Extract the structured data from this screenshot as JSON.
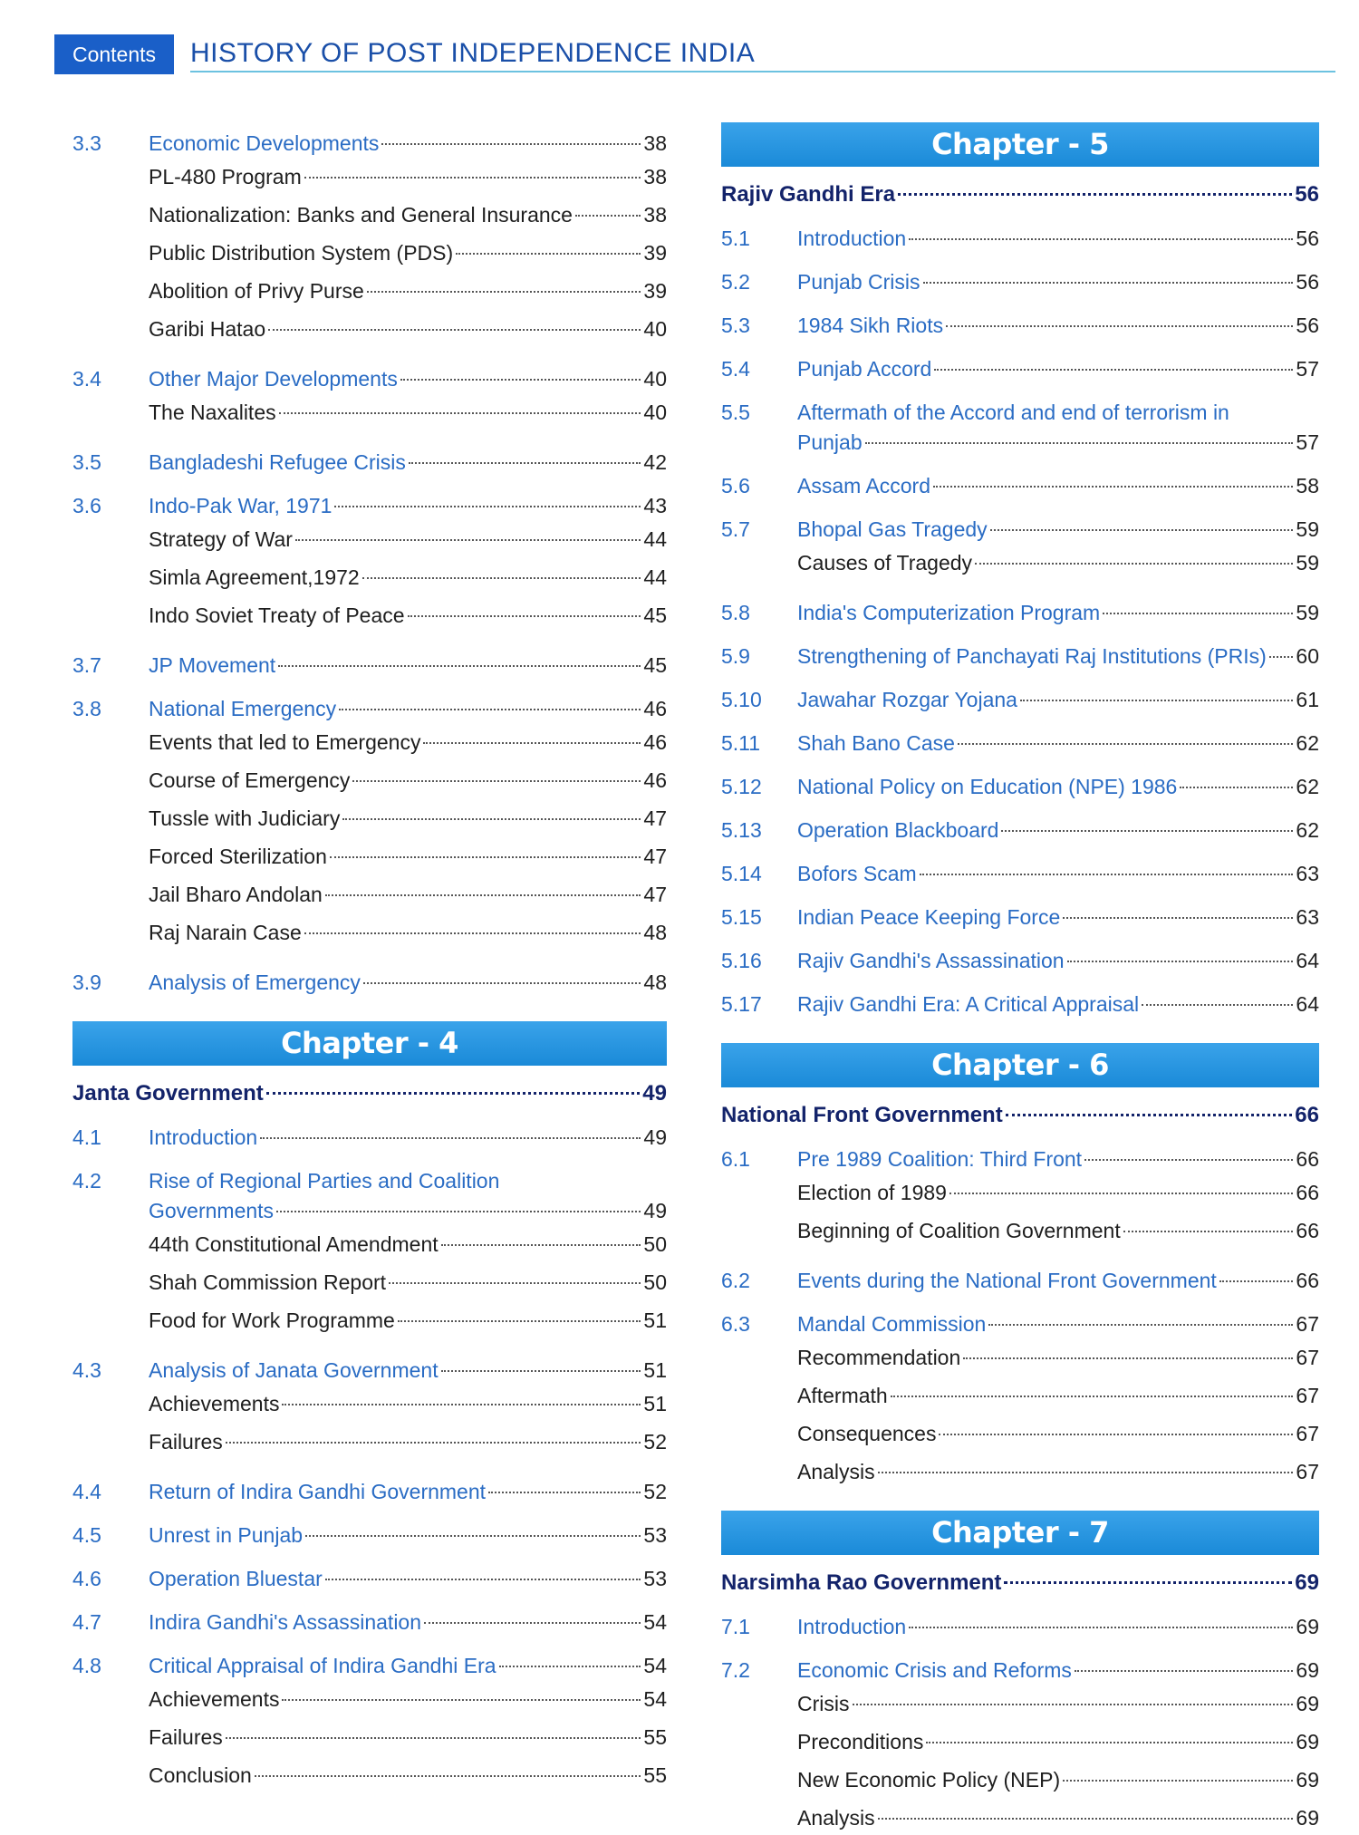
{
  "header": {
    "tag": "Contents",
    "title": "HISTORY OF POST INDEPENDENCE INDIA"
  },
  "colors": {
    "accent": "#1a5fc8",
    "band": "#1f93e0",
    "section_text": "#2a6cc4",
    "chapter_title": "#13236a"
  },
  "left": [
    {
      "type": "section",
      "num": "3.3",
      "title": "Economic Developments",
      "page": "38"
    },
    {
      "type": "sub",
      "title": "PL-480 Program",
      "page": "38"
    },
    {
      "type": "sub",
      "title": "Nationalization: Banks and General Insurance",
      "page": "38"
    },
    {
      "type": "sub",
      "title": "Public Distribution System (PDS)",
      "page": "39"
    },
    {
      "type": "sub",
      "title": "Abolition of Privy Purse",
      "page": "39"
    },
    {
      "type": "sub",
      "title": "Garibi Hatao",
      "page": "40"
    },
    {
      "type": "section",
      "num": "3.4",
      "title": "Other Major Developments",
      "page": "40"
    },
    {
      "type": "sub",
      "title": "The Naxalites",
      "page": "40"
    },
    {
      "type": "section",
      "num": "3.5",
      "title": "Bangladeshi Refugee Crisis",
      "page": "42"
    },
    {
      "type": "section",
      "num": "3.6",
      "title": "Indo-Pak War, 1971",
      "page": "43"
    },
    {
      "type": "sub",
      "title": "Strategy of War",
      "page": "44"
    },
    {
      "type": "sub",
      "title": "Simla Agreement,1972",
      "page": "44"
    },
    {
      "type": "sub",
      "title": "Indo Soviet Treaty of Peace",
      "page": "45"
    },
    {
      "type": "section",
      "num": "3.7",
      "title": "JP Movement",
      "page": "45"
    },
    {
      "type": "section",
      "num": "3.8",
      "title": "National Emergency",
      "page": "46"
    },
    {
      "type": "sub",
      "title": "Events that led to Emergency",
      "page": "46"
    },
    {
      "type": "sub",
      "title": "Course of Emergency",
      "page": "46"
    },
    {
      "type": "sub",
      "title": "Tussle with Judiciary",
      "page": "47"
    },
    {
      "type": "sub",
      "title": "Forced Sterilization",
      "page": "47"
    },
    {
      "type": "sub",
      "title": "Jail Bharo Andolan",
      "page": "47"
    },
    {
      "type": "sub",
      "title": "Raj Narain Case",
      "page": "48"
    },
    {
      "type": "section",
      "num": "3.9",
      "title": "Analysis of Emergency",
      "page": "48"
    },
    {
      "type": "chapter",
      "label": "Chapter - 4"
    },
    {
      "type": "chtitle",
      "title": "Janta Government",
      "page": "49"
    },
    {
      "type": "section",
      "num": "4.1",
      "title": "Introduction",
      "page": "49"
    },
    {
      "type": "section",
      "num": "4.2",
      "title": "Rise of Regional Parties and Coalition",
      "title2": "Governments",
      "page": "49"
    },
    {
      "type": "sub",
      "title": "44th Constitutional Amendment",
      "page": "50"
    },
    {
      "type": "sub",
      "title": "Shah Commission Report",
      "page": "50"
    },
    {
      "type": "sub",
      "title": "Food for Work Programme",
      "page": "51"
    },
    {
      "type": "section",
      "num": "4.3",
      "title": "Analysis of Janata Government",
      "page": "51"
    },
    {
      "type": "sub",
      "title": "Achievements",
      "page": "51"
    },
    {
      "type": "sub",
      "title": "Failures",
      "page": "52"
    },
    {
      "type": "section",
      "num": "4.4",
      "title": "Return of Indira Gandhi Government",
      "page": "52"
    },
    {
      "type": "section",
      "num": "4.5",
      "title": "Unrest in Punjab",
      "page": "53"
    },
    {
      "type": "section",
      "num": "4.6",
      "title": "Operation Bluestar",
      "page": "53"
    },
    {
      "type": "section",
      "num": "4.7",
      "title": "Indira Gandhi's Assassination",
      "page": "54"
    },
    {
      "type": "section",
      "num": "4.8",
      "title": "Critical Appraisal of Indira Gandhi Era",
      "page": "54"
    },
    {
      "type": "sub",
      "title": "Achievements",
      "page": "54"
    },
    {
      "type": "sub",
      "title": "Failures",
      "page": "55"
    },
    {
      "type": "sub",
      "title": "Conclusion",
      "page": "55"
    }
  ],
  "right": [
    {
      "type": "chapter",
      "label": "Chapter - 5"
    },
    {
      "type": "chtitle",
      "title": "Rajiv Gandhi Era",
      "page": "56"
    },
    {
      "type": "section",
      "num": "5.1",
      "title": "Introduction",
      "page": "56"
    },
    {
      "type": "section",
      "num": "5.2",
      "title": "Punjab Crisis",
      "page": "56"
    },
    {
      "type": "section",
      "num": "5.3",
      "title": "1984 Sikh Riots",
      "page": "56"
    },
    {
      "type": "section",
      "num": "5.4",
      "title": "Punjab Accord",
      "page": "57"
    },
    {
      "type": "section",
      "num": "5.5",
      "title": "Aftermath of the Accord and end of terrorism in",
      "title2": "Punjab",
      "page": "57"
    },
    {
      "type": "section",
      "num": "5.6",
      "title": "Assam Accord",
      "page": "58"
    },
    {
      "type": "section",
      "num": "5.7",
      "title": "Bhopal Gas Tragedy",
      "page": "59"
    },
    {
      "type": "sub",
      "title": "Causes of Tragedy",
      "page": "59"
    },
    {
      "type": "section",
      "num": "5.8",
      "title": "India's Computerization Program",
      "page": "59"
    },
    {
      "type": "section",
      "num": "5.9",
      "title": "Strengthening of Panchayati Raj Institutions (PRIs)",
      "page": "60"
    },
    {
      "type": "section",
      "num": "5.10",
      "title": "Jawahar Rozgar Yojana",
      "page": "61"
    },
    {
      "type": "section",
      "num": "5.11",
      "title": "Shah Bano Case",
      "page": "62"
    },
    {
      "type": "section",
      "num": "5.12",
      "title": "National Policy on Education (NPE) 1986",
      "page": "62"
    },
    {
      "type": "section",
      "num": "5.13",
      "title": "Operation Blackboard",
      "page": "62"
    },
    {
      "type": "section",
      "num": "5.14",
      "title": "Bofors Scam",
      "page": "63"
    },
    {
      "type": "section",
      "num": "5.15",
      "title": "Indian Peace Keeping Force",
      "page": "63"
    },
    {
      "type": "section",
      "num": "5.16",
      "title": "Rajiv Gandhi's Assassination",
      "page": "64"
    },
    {
      "type": "section",
      "num": "5.17",
      "title": "Rajiv Gandhi Era: A Critical Appraisal",
      "page": "64"
    },
    {
      "type": "chapter",
      "label": "Chapter - 6"
    },
    {
      "type": "chtitle",
      "title": "National Front Government",
      "page": "66"
    },
    {
      "type": "section",
      "num": "6.1",
      "title": "Pre 1989 Coalition: Third Front",
      "page": "66"
    },
    {
      "type": "sub",
      "title": "Election of 1989",
      "page": "66"
    },
    {
      "type": "sub",
      "title": "Beginning of Coalition Government",
      "page": "66"
    },
    {
      "type": "section",
      "num": "6.2",
      "title": "Events during the National Front Government",
      "page": "66"
    },
    {
      "type": "section",
      "num": "6.3",
      "title": "Mandal Commission",
      "page": "67"
    },
    {
      "type": "sub",
      "title": "Recommendation",
      "page": "67"
    },
    {
      "type": "sub",
      "title": "Aftermath",
      "page": "67"
    },
    {
      "type": "sub",
      "title": "Consequences",
      "page": "67"
    },
    {
      "type": "sub",
      "title": "Analysis",
      "page": "67"
    },
    {
      "type": "chapter",
      "label": "Chapter - 7"
    },
    {
      "type": "chtitle",
      "title": "Narsimha Rao Government",
      "page": "69"
    },
    {
      "type": "section",
      "num": "7.1",
      "title": "Introduction",
      "page": "69"
    },
    {
      "type": "section",
      "num": "7.2",
      "title": "Economic Crisis and Reforms",
      "page": "69"
    },
    {
      "type": "sub",
      "title": "Crisis",
      "page": "69"
    },
    {
      "type": "sub",
      "title": "Preconditions",
      "page": "69"
    },
    {
      "type": "sub",
      "title": "New Economic Policy (NEP)",
      "page": "69"
    },
    {
      "type": "sub",
      "title": "Analysis",
      "page": "69"
    }
  ]
}
